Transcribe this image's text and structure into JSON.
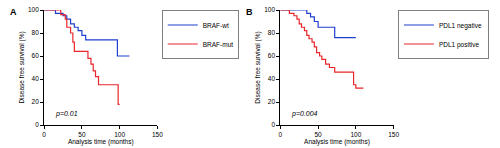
{
  "chart_data": [
    {
      "type": "line",
      "line_style": "step",
      "panel": "A",
      "xlabel": "Analysis time (months)",
      "ylabel": "Disease free survival (%)",
      "xlim": [
        0,
        150
      ],
      "xticks": [
        0,
        50,
        100,
        150
      ],
      "ylim": [
        0,
        100
      ],
      "yticks": [
        0,
        20,
        40,
        60,
        80,
        100
      ],
      "grid": false,
      "legend": "right",
      "annotations": [
        "p=0.01"
      ],
      "series": [
        {
          "name": "BRAF-wt",
          "color": "#1f3fcf",
          "x": [
            0,
            15,
            25,
            30,
            35,
            40,
            45,
            50,
            55,
            97,
            113
          ],
          "values": [
            100,
            97,
            95,
            92,
            88,
            85,
            82,
            78,
            74,
            60,
            60
          ]
        },
        {
          "name": "BRAF-mut",
          "color": "#e8262b",
          "x": [
            0,
            22,
            28,
            30,
            35,
            38,
            40,
            58,
            62,
            65,
            68,
            72,
            98,
            100
          ],
          "values": [
            100,
            96,
            92,
            85,
            80,
            72,
            64,
            58,
            53,
            47,
            42,
            35,
            18,
            18
          ]
        }
      ]
    },
    {
      "type": "line",
      "line_style": "step",
      "panel": "B",
      "xlabel": "Analysis time (months)",
      "ylabel": "Disease free survival (%)",
      "xlim": [
        0,
        150
      ],
      "xticks": [
        0,
        50,
        100,
        150
      ],
      "ylim": [
        0,
        100
      ],
      "yticks": [
        0,
        20,
        40,
        60,
        80,
        100
      ],
      "grid": false,
      "legend": "right",
      "annotations": [
        "p=0.004"
      ],
      "series": [
        {
          "name": "PDL1 negative",
          "color": "#1f3fcf",
          "x": [
            0,
            35,
            40,
            45,
            50,
            72,
            100
          ],
          "values": [
            100,
            97,
            94,
            90,
            85,
            76,
            76
          ]
        },
        {
          "name": "PDL1 positive",
          "color": "#e8262b",
          "x": [
            0,
            12,
            18,
            22,
            25,
            28,
            32,
            35,
            38,
            42,
            45,
            48,
            52,
            55,
            60,
            65,
            72,
            97,
            100,
            110
          ],
          "values": [
            100,
            97,
            95,
            92,
            88,
            85,
            82,
            78,
            75,
            72,
            68,
            63,
            60,
            57,
            53,
            50,
            46,
            35,
            32,
            32
          ]
        }
      ]
    }
  ]
}
